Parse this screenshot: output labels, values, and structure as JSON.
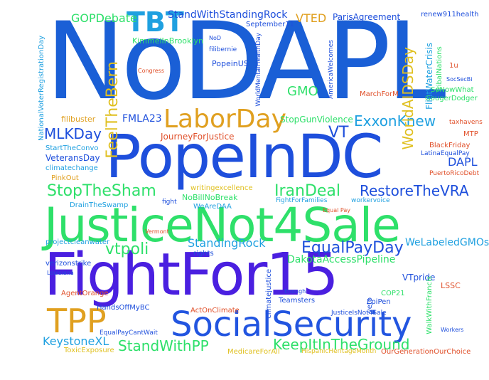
{
  "words": [
    {
      "text": "NoDAPL",
      "color": "#1a5fd6"
    },
    {
      "text": "PopeInDC",
      "color": "#1e4fdc"
    },
    {
      "text": "JusticeNot4Sale",
      "color": "#2ee06a"
    },
    {
      "text": "FightFor15",
      "color": "#4a1fe0"
    },
    {
      "text": "SocialSecurity",
      "color": "#2255e0"
    },
    {
      "text": "TPP",
      "color": "#e0a020"
    },
    {
      "text": "TBT",
      "color": "#1fa0e0"
    },
    {
      "text": "LaborDay",
      "color": "#e0a020"
    },
    {
      "text": "StopTheSham",
      "color": "#2ee06a"
    },
    {
      "text": "IranDeal",
      "color": "#2ee06a"
    },
    {
      "text": "RestoreTheVRA",
      "color": "#1e4fdc"
    },
    {
      "text": "EqualPayDay",
      "color": "#1e4fdc"
    },
    {
      "text": "KeepItInTheGround",
      "color": "#2ee06a"
    },
    {
      "text": "StandWithPP",
      "color": "#2ee06a"
    },
    {
      "text": "KeystoneXL",
      "color": "#1fa0e0"
    },
    {
      "text": "vtpoli",
      "color": "#2ee06a"
    },
    {
      "text": "ExxonKnew",
      "color": "#1fa0e0"
    },
    {
      "text": "MLKDay",
      "color": "#1e4fdc"
    },
    {
      "text": "FeelTheBern",
      "color": "#e0c020"
    },
    {
      "text": "WorldAIDSDay",
      "color": "#e0c020"
    },
    {
      "text": "GMO",
      "color": "#2ee06a"
    },
    {
      "text": "VT",
      "color": "#1e4fdc"
    },
    {
      "text": "DAPL",
      "color": "#1e4fdc"
    },
    {
      "text": "StandingRock",
      "color": "#1fa0e0"
    },
    {
      "text": "WeLabeledGMOs",
      "color": "#1fa0e0"
    },
    {
      "text": "DakotaAccessPipeline",
      "color": "#2ee06a"
    },
    {
      "text": "NationalVoterRegistrationDay",
      "color": "#1fa0e0"
    },
    {
      "text": "StandWithStandingRock",
      "color": "#1e4fdc"
    },
    {
      "text": "GOPDebate",
      "color": "#2ee06a"
    },
    {
      "text": "VTED",
      "color": "#e0a020"
    },
    {
      "text": "ParisAgreement",
      "color": "#1e4fdc"
    },
    {
      "text": "renew911health",
      "color": "#1e4fdc"
    },
    {
      "text": "KimmelInBrooklyn",
      "color": "#2ee06a"
    },
    {
      "text": "FlintWaterCrisis",
      "color": "#1fa0e0"
    },
    {
      "text": "TribalNations",
      "color": "#2ee06a"
    },
    {
      "text": "FMLA23",
      "color": "#1e4fdc"
    },
    {
      "text": "JourneyForJustice",
      "color": "#e0502a"
    },
    {
      "text": "StopGunViolence",
      "color": "#2ee06a"
    },
    {
      "text": "filibuster",
      "color": "#e0a020"
    },
    {
      "text": "VeteransDay",
      "color": "#1e4fdc"
    },
    {
      "text": "StartTheConvo",
      "color": "#1fa0e0"
    },
    {
      "text": "climatechange",
      "color": "#1fa0e0"
    },
    {
      "text": "PinkOut",
      "color": "#e0a020"
    },
    {
      "text": "NoBillNoBreak",
      "color": "#2ee06a"
    },
    {
      "text": "writingexcellence",
      "color": "#e0c020"
    },
    {
      "text": "BlackFriday",
      "color": "#e0502a"
    },
    {
      "text": "LatinaEqualPay",
      "color": "#1e4fdc"
    },
    {
      "text": "PuertoRicoDebt",
      "color": "#e0502a"
    },
    {
      "text": "MTP",
      "color": "#e0502a"
    },
    {
      "text": "SoNowWhat",
      "color": "#2ee06a"
    },
    {
      "text": "GougerDodger",
      "color": "#2ee06a"
    },
    {
      "text": "MarchForM",
      "color": "#e0502a"
    },
    {
      "text": "VTpride",
      "color": "#1e4fdc"
    },
    {
      "text": "LSSC",
      "color": "#e0502a"
    },
    {
      "text": "COP21",
      "color": "#2ee06a"
    },
    {
      "text": "EpiPen",
      "color": "#1e4fdc"
    },
    {
      "text": "WalkWithFrancis",
      "color": "#2ee06a"
    },
    {
      "text": "JusticeIsNot4Sale",
      "color": "#1e4fdc"
    },
    {
      "text": "veto",
      "color": "#1e4fdc"
    },
    {
      "text": "Teamsters",
      "color": "#1e4fdc"
    },
    {
      "text": "HandsOffMyBC",
      "color": "#1e4fdc"
    },
    {
      "text": "EqualPayCantWait",
      "color": "#1e4fdc"
    },
    {
      "text": "ToxicExposure",
      "color": "#e0c020"
    },
    {
      "text": "MedicareForAll",
      "color": "#e0c020"
    },
    {
      "text": "HispanicHeritageMonth",
      "color": "#e0c020"
    },
    {
      "text": "OurGenerationOurChoice",
      "color": "#e0502a"
    },
    {
      "text": "ActOnClimate",
      "color": "#e0502a"
    },
    {
      "text": "climatejustice",
      "color": "#1e4fdc"
    },
    {
      "text": "AgentOrange",
      "color": "#e0502a"
    },
    {
      "text": "verizonstrike",
      "color": "#1e4fdc"
    },
    {
      "text": "projectcleanwater",
      "color": "#1fa0e0"
    },
    {
      "text": "DrainTheSwamp",
      "color": "#1fa0e0"
    },
    {
      "text": "WeAreDAA",
      "color": "#1fa0e0"
    },
    {
      "text": "rights",
      "color": "#1e4fdc"
    },
    {
      "text": "fight",
      "color": "#1e4fdc"
    },
    {
      "text": "PopeinUS",
      "color": "#1e4fdc"
    },
    {
      "text": "Congress",
      "color": "#e0502a"
    },
    {
      "text": "filibernie",
      "color": "#1e4fdc"
    },
    {
      "text": "NoD",
      "color": "#1e4fdc"
    },
    {
      "text": "September11",
      "color": "#1e4fdc"
    },
    {
      "text": "WorldMentalHealthDay",
      "color": "#1e4fdc"
    },
    {
      "text": "AmericaWelcomes",
      "color": "#1e4fdc"
    },
    {
      "text": "taxhavens",
      "color": "#e0502a"
    },
    {
      "text": "Vermont",
      "color": "#e0502a"
    },
    {
      "text": "workervoice",
      "color": "#1fa0e0"
    },
    {
      "text": "Louisiana",
      "color": "#1e4fdc"
    },
    {
      "text": "Workers",
      "color": "#1e4fdc"
    },
    {
      "text": "Enough",
      "color": "#1e4fdc"
    },
    {
      "text": "FightForFamilies",
      "color": "#1fa0e0"
    },
    {
      "text": "Equal Pay",
      "color": "#e0502a"
    },
    {
      "text": "BlackFriday2",
      "color": "#e0502a"
    },
    {
      "text": "1u",
      "color": "#e0502a"
    },
    {
      "text": "SocSecBi",
      "color": "#1e4fdc"
    }
  ]
}
